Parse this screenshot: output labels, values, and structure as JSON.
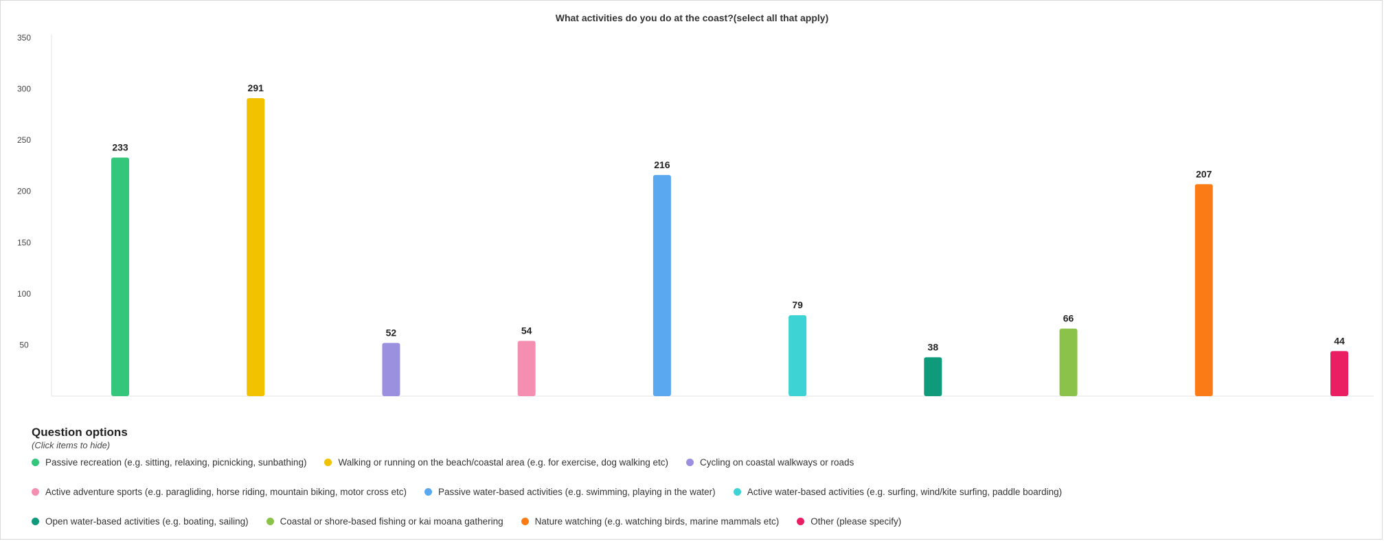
{
  "chart_data": {
    "type": "bar",
    "title": "What activities do you do at the coast?(select all that apply)",
    "xlabel": "",
    "ylabel": "",
    "ylim": [
      0,
      350
    ],
    "yticks": [
      50,
      100,
      150,
      200,
      250,
      300,
      350
    ],
    "grid": false,
    "legend_position": "bottom",
    "categories": [
      "Passive recreation (e.g. sitting, relaxing, picnicking, sunbathing)",
      "Walking or running on the beach/coastal area (e.g. for exercise, dog walking etc)",
      "Cycling on coastal walkways or roads",
      "Active adventure sports (e.g. paragliding, horse riding, mountain biking, motor cross etc)",
      "Passive water-based activities (e.g. swimming, playing in the water)",
      "Active water-based activities (e.g. surfing, wind/kite surfing, paddle boarding)",
      "Open water-based activities (e.g. boating, sailing)",
      "Coastal or shore-based fishing or kai moana gathering",
      "Nature watching (e.g. watching birds, marine mammals etc)",
      "Other (please specify)"
    ],
    "values": [
      233,
      291,
      52,
      54,
      216,
      79,
      38,
      66,
      207,
      44
    ],
    "colors": [
      "#34c77b",
      "#f2c200",
      "#9b8fe0",
      "#f48fb1",
      "#5aa9f0",
      "#3dd2d4",
      "#0f9a7c",
      "#8bc34a",
      "#fb7c17",
      "#e91e63"
    ]
  },
  "legend": {
    "heading": "Question options",
    "hint": "(Click items to hide)"
  }
}
